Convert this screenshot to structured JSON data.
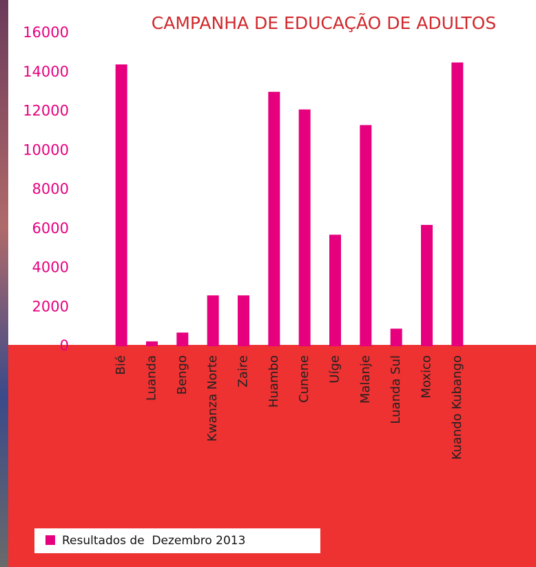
{
  "chart_data": {
    "type": "bar",
    "title": "CAMPANHA DE EDUCAÇÃO DE ADULTOS",
    "categories": [
      "Bié",
      "Luanda",
      "Bengo",
      "Kwanza Norte",
      "Zaire",
      "Huambo",
      "Cunene",
      "Uíge",
      "Malanje",
      "Luanda Sul",
      "Moxico",
      "Kuando Kubango"
    ],
    "series": [
      {
        "name": "Resultados de  Dezembro 2013",
        "color": "#e6007e",
        "values": [
          14400,
          250,
          700,
          2600,
          2600,
          13000,
          12100,
          5700,
          11300,
          900,
          6200,
          14500
        ]
      }
    ],
    "ylim": [
      0,
      16000
    ],
    "yticks": [
      0,
      2000,
      4000,
      6000,
      8000,
      10000,
      12000,
      14000,
      16000
    ],
    "grid": false,
    "legend": "bottom-left"
  }
}
